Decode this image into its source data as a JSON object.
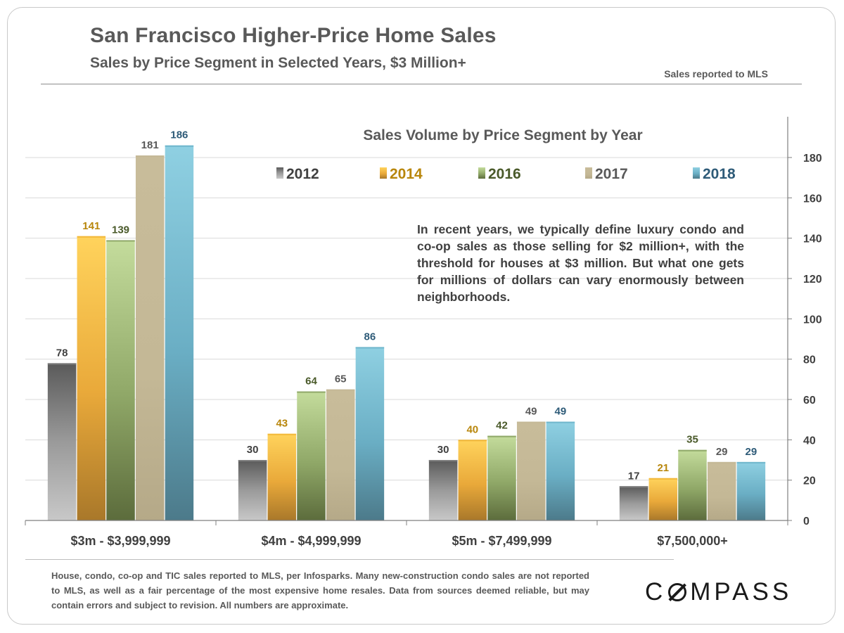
{
  "header": {
    "title": "San Francisco Higher-Price Home Sales",
    "subtitle": "Sales by Price Segment in Selected Years, $3 Million+",
    "source_note": "Sales reported to MLS"
  },
  "annotation": "In recent years, we typically define luxury condo and co-op sales as those selling for $2 million+, with the threshold for houses at $3 million. But what one gets for millions of dollars can vary enormously between neighborhoods.",
  "footnote": "House, condo, co-op and TIC sales reported to MLS, per Infosparks. Many new-construction condo sales are not reported to MLS, as well as a fair percentage of the most expensive home resales. Data from sources deemed reliable, but may contain errors and subject to revision.  All numbers are approximate.",
  "logo": {
    "prefix": "C",
    "suffix": "MPASS"
  },
  "colors": {
    "s2012": "#7f7f7f",
    "s2014": "#f2b83a",
    "s2016": "#8fa868",
    "s2017": "#c4b896",
    "s2018": "#6fb6cc",
    "label2012": "#404040",
    "label2014": "#b8860b",
    "label2016": "#4a5a2a",
    "label2017": "#595959",
    "label2018": "#2e5b78",
    "grid": "#d9d9d9",
    "axis": "#7f7f7f"
  },
  "chart_data": {
    "type": "bar",
    "title": "Sales Volume by Price Segment by Year",
    "categories": [
      "$3m - $3,999,999",
      "$4m - $4,999,999",
      "$5m - $7,499,999",
      "$7,500,000+"
    ],
    "series": [
      {
        "name": "2012",
        "values": [
          78,
          30,
          30,
          17
        ]
      },
      {
        "name": "2014",
        "values": [
          141,
          43,
          40,
          21
        ]
      },
      {
        "name": "2016",
        "values": [
          139,
          64,
          42,
          35
        ]
      },
      {
        "name": "2017",
        "values": [
          181,
          65,
          49,
          29
        ]
      },
      {
        "name": "2018",
        "values": [
          186,
          86,
          49,
          29
        ]
      }
    ],
    "ylim": [
      0,
      180
    ],
    "yticks": [
      0,
      20,
      40,
      60,
      80,
      100,
      120,
      140,
      160,
      180
    ],
    "y_axis_position": "right",
    "grid": true,
    "legend_position": "top-center",
    "data_labels": true
  }
}
